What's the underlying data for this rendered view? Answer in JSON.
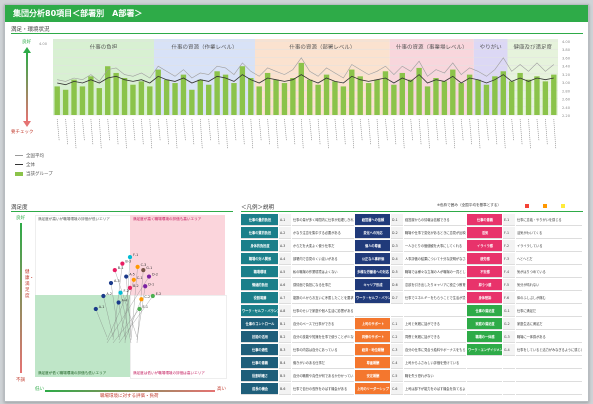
{
  "window": {
    "title": "集団分析80項目＜部署別　A部署＞"
  },
  "sections": {
    "top": "満足・環境状況",
    "bottom_left": "満足度",
    "bottom_right": "＜凡例＞説明"
  },
  "bands": [
    {
      "label": "仕事の負担",
      "color": "#d8f0d2"
    },
    {
      "label": "仕事の資源（作業レベル）",
      "color": "#d8e2f7"
    },
    {
      "label": "仕事の資源（部署レベル）",
      "color": "#fbe2cf"
    },
    {
      "label": "仕事の資源（事業場レベル）",
      "color": "#f8d6dc"
    },
    {
      "label": "やりがい",
      "color": "#dcd8f5"
    },
    {
      "label": "健康及び満足度",
      "color": "#e6f3dc"
    }
  ],
  "legend": [
    {
      "label": "全国平均",
      "color": "#999999"
    },
    {
      "label": "全体",
      "color": "#333333"
    },
    {
      "label": "当該グループ",
      "color": "#8bc34a"
    }
  ],
  "left_axis": {
    "top": "良好",
    "bottom": "要チェック",
    "tick_top": "4.00"
  },
  "right_axis_ticks": [
    "4.00",
    "3.80",
    "3.60",
    "3.40",
    "3.20",
    "3.00",
    "2.80",
    "2.60",
    "2.40",
    "2.20"
  ],
  "chart_data": {
    "type": "bar",
    "ylim": [
      2.0,
      4.2
    ],
    "series": [
      {
        "name": "当該グループ",
        "type": "bar",
        "values": [
          2.85,
          2.75,
          3.05,
          2.85,
          3.15,
          2.8,
          3.45,
          3.25,
          3.1,
          2.9,
          3.0,
          2.85,
          3.35,
          3.05,
          2.95,
          3.2,
          2.75,
          3.05,
          2.9,
          3.3,
          3.2,
          2.95,
          3.45,
          3.1,
          2.85,
          3.25,
          3.05,
          2.95,
          3.1,
          3.55,
          3.05,
          2.9,
          3.2,
          3.0,
          2.85,
          3.35,
          3.15,
          2.95,
          3.05,
          3.3,
          2.9,
          3.25,
          3.05,
          3.4,
          2.85,
          3.1,
          3.0,
          3.35,
          2.95,
          3.2,
          3.05,
          2.9,
          3.15,
          3.3,
          3.0,
          3.25,
          3.05,
          3.15,
          3.0,
          3.2
        ]
      },
      {
        "name": "全国平均",
        "type": "line",
        "values": [
          3.05,
          3.0,
          3.1,
          3.05,
          3.2,
          3.0,
          3.35,
          3.4,
          3.2,
          3.15,
          3.25,
          3.1,
          3.45,
          3.3,
          3.15,
          3.35,
          3.1,
          3.25,
          3.2,
          3.45,
          3.4,
          3.2,
          3.55,
          3.3,
          3.15,
          3.4,
          3.3,
          3.2,
          3.35,
          3.7,
          3.3,
          3.15,
          3.4,
          3.25,
          3.1,
          3.5,
          3.35,
          3.2,
          3.3,
          3.45,
          3.2,
          3.45,
          3.3,
          3.6,
          3.15,
          3.35,
          3.25,
          3.55,
          3.2,
          3.4,
          3.3,
          3.15,
          3.35,
          3.7,
          3.3,
          3.5,
          3.3,
          3.55,
          3.3,
          3.5
        ]
      },
      {
        "name": "全体",
        "type": "line",
        "values": [
          2.95,
          2.9,
          3.0,
          2.95,
          3.05,
          2.95,
          3.1,
          3.15,
          3.05,
          3.0,
          3.05,
          2.95,
          3.15,
          3.05,
          3.0,
          3.1,
          2.95,
          3.05,
          3.0,
          3.15,
          3.1,
          3.0,
          3.2,
          3.05,
          2.95,
          3.1,
          3.05,
          3.0,
          3.05,
          3.2,
          3.05,
          2.95,
          3.1,
          3.0,
          2.95,
          3.15,
          3.05,
          3.0,
          3.05,
          3.1,
          2.95,
          3.1,
          3.0,
          3.2,
          2.95,
          3.05,
          3.0,
          3.15,
          2.95,
          3.1,
          3.05,
          2.95,
          3.05,
          3.2,
          3.0,
          3.1,
          3.0,
          3.1,
          3.05,
          3.1
        ]
      }
    ]
  },
  "scatter": {
    "y_axis_label": "健康・満足度",
    "y_top": "良好",
    "y_bottom": "不調",
    "x_left": "低い",
    "x_right": "高い",
    "x_axis_label": "職場環境に対する評価・負荷",
    "quad_tl": "満足度が高いが職場環境の評価が低いエリア",
    "quad_tr": "満足度が高く職場環境の評価も高いエリア",
    "quad_bl": "満足度が低く職場環境の評価も低いエリア",
    "quad_br": "満足度は低いが職場環境の評価は高いエリア",
    "points": [
      {
        "label": "A-1",
        "x": 0.32,
        "y": 0.42,
        "c": "#1a3a8a"
      },
      {
        "label": "A-2",
        "x": 0.36,
        "y": 0.5,
        "c": "#1a3a8a"
      },
      {
        "label": "A-3",
        "x": 0.4,
        "y": 0.58,
        "c": "#1a3a8a"
      },
      {
        "label": "A-4",
        "x": 0.44,
        "y": 0.46,
        "c": "#1a3a8a"
      },
      {
        "label": "A-5",
        "x": 0.48,
        "y": 0.62,
        "c": "#1a3a8a"
      },
      {
        "label": "B-1",
        "x": 0.42,
        "y": 0.66,
        "c": "#e91e63"
      },
      {
        "label": "B-2",
        "x": 0.5,
        "y": 0.55,
        "c": "#e91e63"
      },
      {
        "label": "B-3",
        "x": 0.46,
        "y": 0.7,
        "c": "#e91e63"
      },
      {
        "label": "C-1",
        "x": 0.52,
        "y": 0.6,
        "c": "#ff9800"
      },
      {
        "label": "C-2",
        "x": 0.56,
        "y": 0.48,
        "c": "#ff9800"
      },
      {
        "label": "C-3",
        "x": 0.54,
        "y": 0.68,
        "c": "#ff9800"
      },
      {
        "label": "D-1",
        "x": 0.58,
        "y": 0.56,
        "c": "#7b1fa2"
      },
      {
        "label": "D-2",
        "x": 0.6,
        "y": 0.62,
        "c": "#7b1fa2"
      },
      {
        "label": "E-1",
        "x": 0.55,
        "y": 0.42,
        "c": "#4caf50"
      },
      {
        "label": "E-2",
        "x": 0.62,
        "y": 0.5,
        "c": "#4caf50"
      },
      {
        "label": "F-1",
        "x": 0.5,
        "y": 0.74,
        "c": "#00bcd4"
      },
      {
        "label": "F-2",
        "x": 0.45,
        "y": 0.52,
        "c": "#00bcd4"
      },
      {
        "label": "G-1",
        "x": 0.57,
        "y": 0.66,
        "c": "#795548"
      }
    ]
  },
  "legend_table": {
    "header_note": "※色枠で囲み（全国平均を基準とする）",
    "rows": [
      [
        "仕事の量的負担",
        "A-1",
        "仕事の量が多く時間内に仕事が処理しきれない",
        "経営層への信頼",
        "D-1",
        "経営層からの情報は信頼できる",
        "仕事の意義",
        "E-1",
        "仕事に意義・やりがいを感じる"
      ],
      [
        "仕事の質的負担",
        "A-2",
        "かなり注意を集中する必要がある",
        "変化への対応",
        "D-2",
        "職場や仕事で変化があるときに意見が反映される",
        "活気",
        "F-1",
        "活気がわいてくる"
      ],
      [
        "身体的負担度",
        "A-3",
        "からだを大変よく使う仕事だ",
        "個人の尊重",
        "D-3",
        "一人ひとりの価値観を大事にしてくれる",
        "イライラ感",
        "F-2",
        "イライラしている"
      ],
      [
        "職場の対人関係",
        "A-4",
        "部署内で意見のくい違いがある",
        "公正な人事評価",
        "D-4",
        "人事評価の結果について十分な説明がなされている",
        "疲労感",
        "F-3",
        "へとへとだ"
      ],
      [
        "職場環境",
        "A-5",
        "私の職場の作業環境はよくない",
        "多様な労働者への対応",
        "D-5",
        "職場では様々な立場の人が職場の一員として尊重されている",
        "不安感",
        "F-4",
        "気がはりつめている"
      ],
      [
        "情緒的負担",
        "A-6",
        "感情面で負担になる仕事だ",
        "キャリア形成",
        "D-6",
        "意欲を引き出したりキャリアに役立つ教育が行われている",
        "抑うつ感",
        "F-5",
        "気分が晴れない"
      ],
      [
        "役割葛藤",
        "A-7",
        "複数の人からお互いに矛盾したことを要求される",
        "ワーク・セルフ・バランス",
        "D-7",
        "仕事でエネルギーをもらうことで生活が豊かになっている",
        "身体愁訴",
        "F-6",
        "体のふしぶしが痛む"
      ],
      [
        "ワーク・セルフ・バランス",
        "A-8",
        "仕事のせいで家庭や個人生活に影響がある",
        "",
        "",
        "",
        "仕事の満足度",
        "G-1",
        "仕事に満足だ"
      ],
      [
        "仕事のコントロール",
        "B-1",
        "自分のペースで仕事ができる",
        "上司のサポート",
        "C-1",
        "上司と気軽に話ができる",
        "家庭の満足度",
        "G-2",
        "家庭生活に満足だ"
      ],
      [
        "技能の活用",
        "B-2",
        "自分の技能や知識を仕事で使うことが少ない",
        "同僚のサポート",
        "C-2",
        "同僚と気軽に話ができる",
        "職場の一体感",
        "G-3",
        "職場に一体感がある"
      ],
      [
        "仕事の適性",
        "B-3",
        "仕事の内容は自分にあっている",
        "経済・地位報酬",
        "C-3",
        "自分の仕事に見合う給料やボーナスをもらっている",
        "ワーク・エンゲイジメント",
        "G-4",
        "仕事をしていると活力がみなぎるように感じる"
      ],
      [
        "仕事の意義",
        "B-4",
        "働きがいのある仕事だ",
        "尊重報酬",
        "C-4",
        "上司からふさわしい評価を受けている",
        "",
        "",
        ""
      ],
      [
        "役割明確さ",
        "B-5",
        "自分の職務や責任が何であるか分かっている",
        "安定報酬",
        "C-5",
        "職を失う恐れがない",
        "",
        "",
        ""
      ],
      [
        "成長の機会",
        "B-6",
        "仕事で自分の長所をのばす機会がある",
        "上司のリーダーシップ",
        "C-6",
        "上司は部下が能力をのばす機会を持てるように取り計らってくれる",
        "",
        "",
        ""
      ]
    ]
  }
}
